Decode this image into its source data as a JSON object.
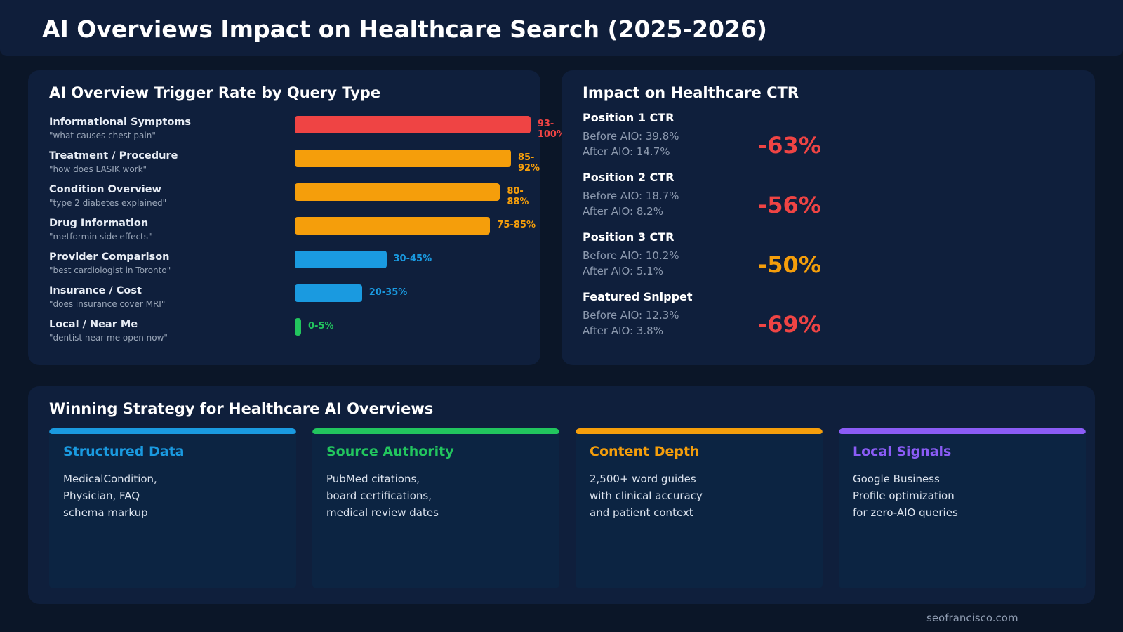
{
  "title": "AI Overviews Impact on Healthcare Search (2025-2026)",
  "chart_data": {
    "type": "bar",
    "orientation": "horizontal",
    "title": "AI Overview Trigger Rate by Query Type",
    "categories": [
      "Informational Symptoms",
      "Treatment / Procedure",
      "Condition Overview",
      "Drug Information",
      "Provider Comparison",
      "Insurance / Cost",
      "Local / Near Me"
    ],
    "examples": [
      "\"what causes chest pain\"",
      "\"how does LASIK work\"",
      "\"type 2 diabetes explained\"",
      "\"metformin side effects\"",
      "\"best cardiologist in Toronto\"",
      "\"does insurance cover MRI\"",
      "\"dentist near me open now\""
    ],
    "ranges": [
      [
        93,
        100
      ],
      [
        85,
        92
      ],
      [
        80,
        88
      ],
      [
        75,
        85
      ],
      [
        30,
        45
      ],
      [
        20,
        35
      ],
      [
        0,
        5
      ]
    ],
    "labels": [
      "93-100%",
      "85-92%",
      "80-88%",
      "75-85%",
      "30-45%",
      "20-35%",
      "0-5%"
    ],
    "colors": [
      "#ef4444",
      "#f59e0b",
      "#f59e0b",
      "#f59e0b",
      "#1a9ae0",
      "#1a9ae0",
      "#22c55e"
    ],
    "xlim": [
      0,
      100
    ]
  },
  "ctr": {
    "title": "Impact on Healthcare CTR",
    "items": [
      {
        "title": "Position 1 CTR",
        "before": "Before AIO: 39.8%",
        "after": "After AIO: 14.7%",
        "change": "-63%",
        "color": "#ef4444"
      },
      {
        "title": "Position 2 CTR",
        "before": "Before AIO: 18.7%",
        "after": "After AIO: 8.2%",
        "change": "-56%",
        "color": "#ef4444"
      },
      {
        "title": "Position 3 CTR",
        "before": "Before AIO: 10.2%",
        "after": "After AIO: 5.1%",
        "change": "-50%",
        "color": "#f59e0b"
      },
      {
        "title": "Featured Snippet",
        "before": "Before AIO: 12.3%",
        "after": "After AIO: 3.8%",
        "change": "-69%",
        "color": "#ef4444"
      }
    ]
  },
  "strategy": {
    "title": "Winning Strategy for Healthcare AI Overviews",
    "cards": [
      {
        "title": "Structured Data",
        "body": "MedicalCondition,\nPhysician, FAQ\nschema markup",
        "color": "#1a9ae0"
      },
      {
        "title": "Source Authority",
        "body": "PubMed citations,\nboard certifications,\nmedical review dates",
        "color": "#22c55e"
      },
      {
        "title": "Content Depth",
        "body": "2,500+ word guides\nwith clinical accuracy\nand patient context",
        "color": "#f59e0b"
      },
      {
        "title": "Local Signals",
        "body": "Google Business\nProfile optimization\nfor zero-AIO queries",
        "color": "#8b5cf6"
      }
    ]
  },
  "footer": "seofrancisco.com"
}
